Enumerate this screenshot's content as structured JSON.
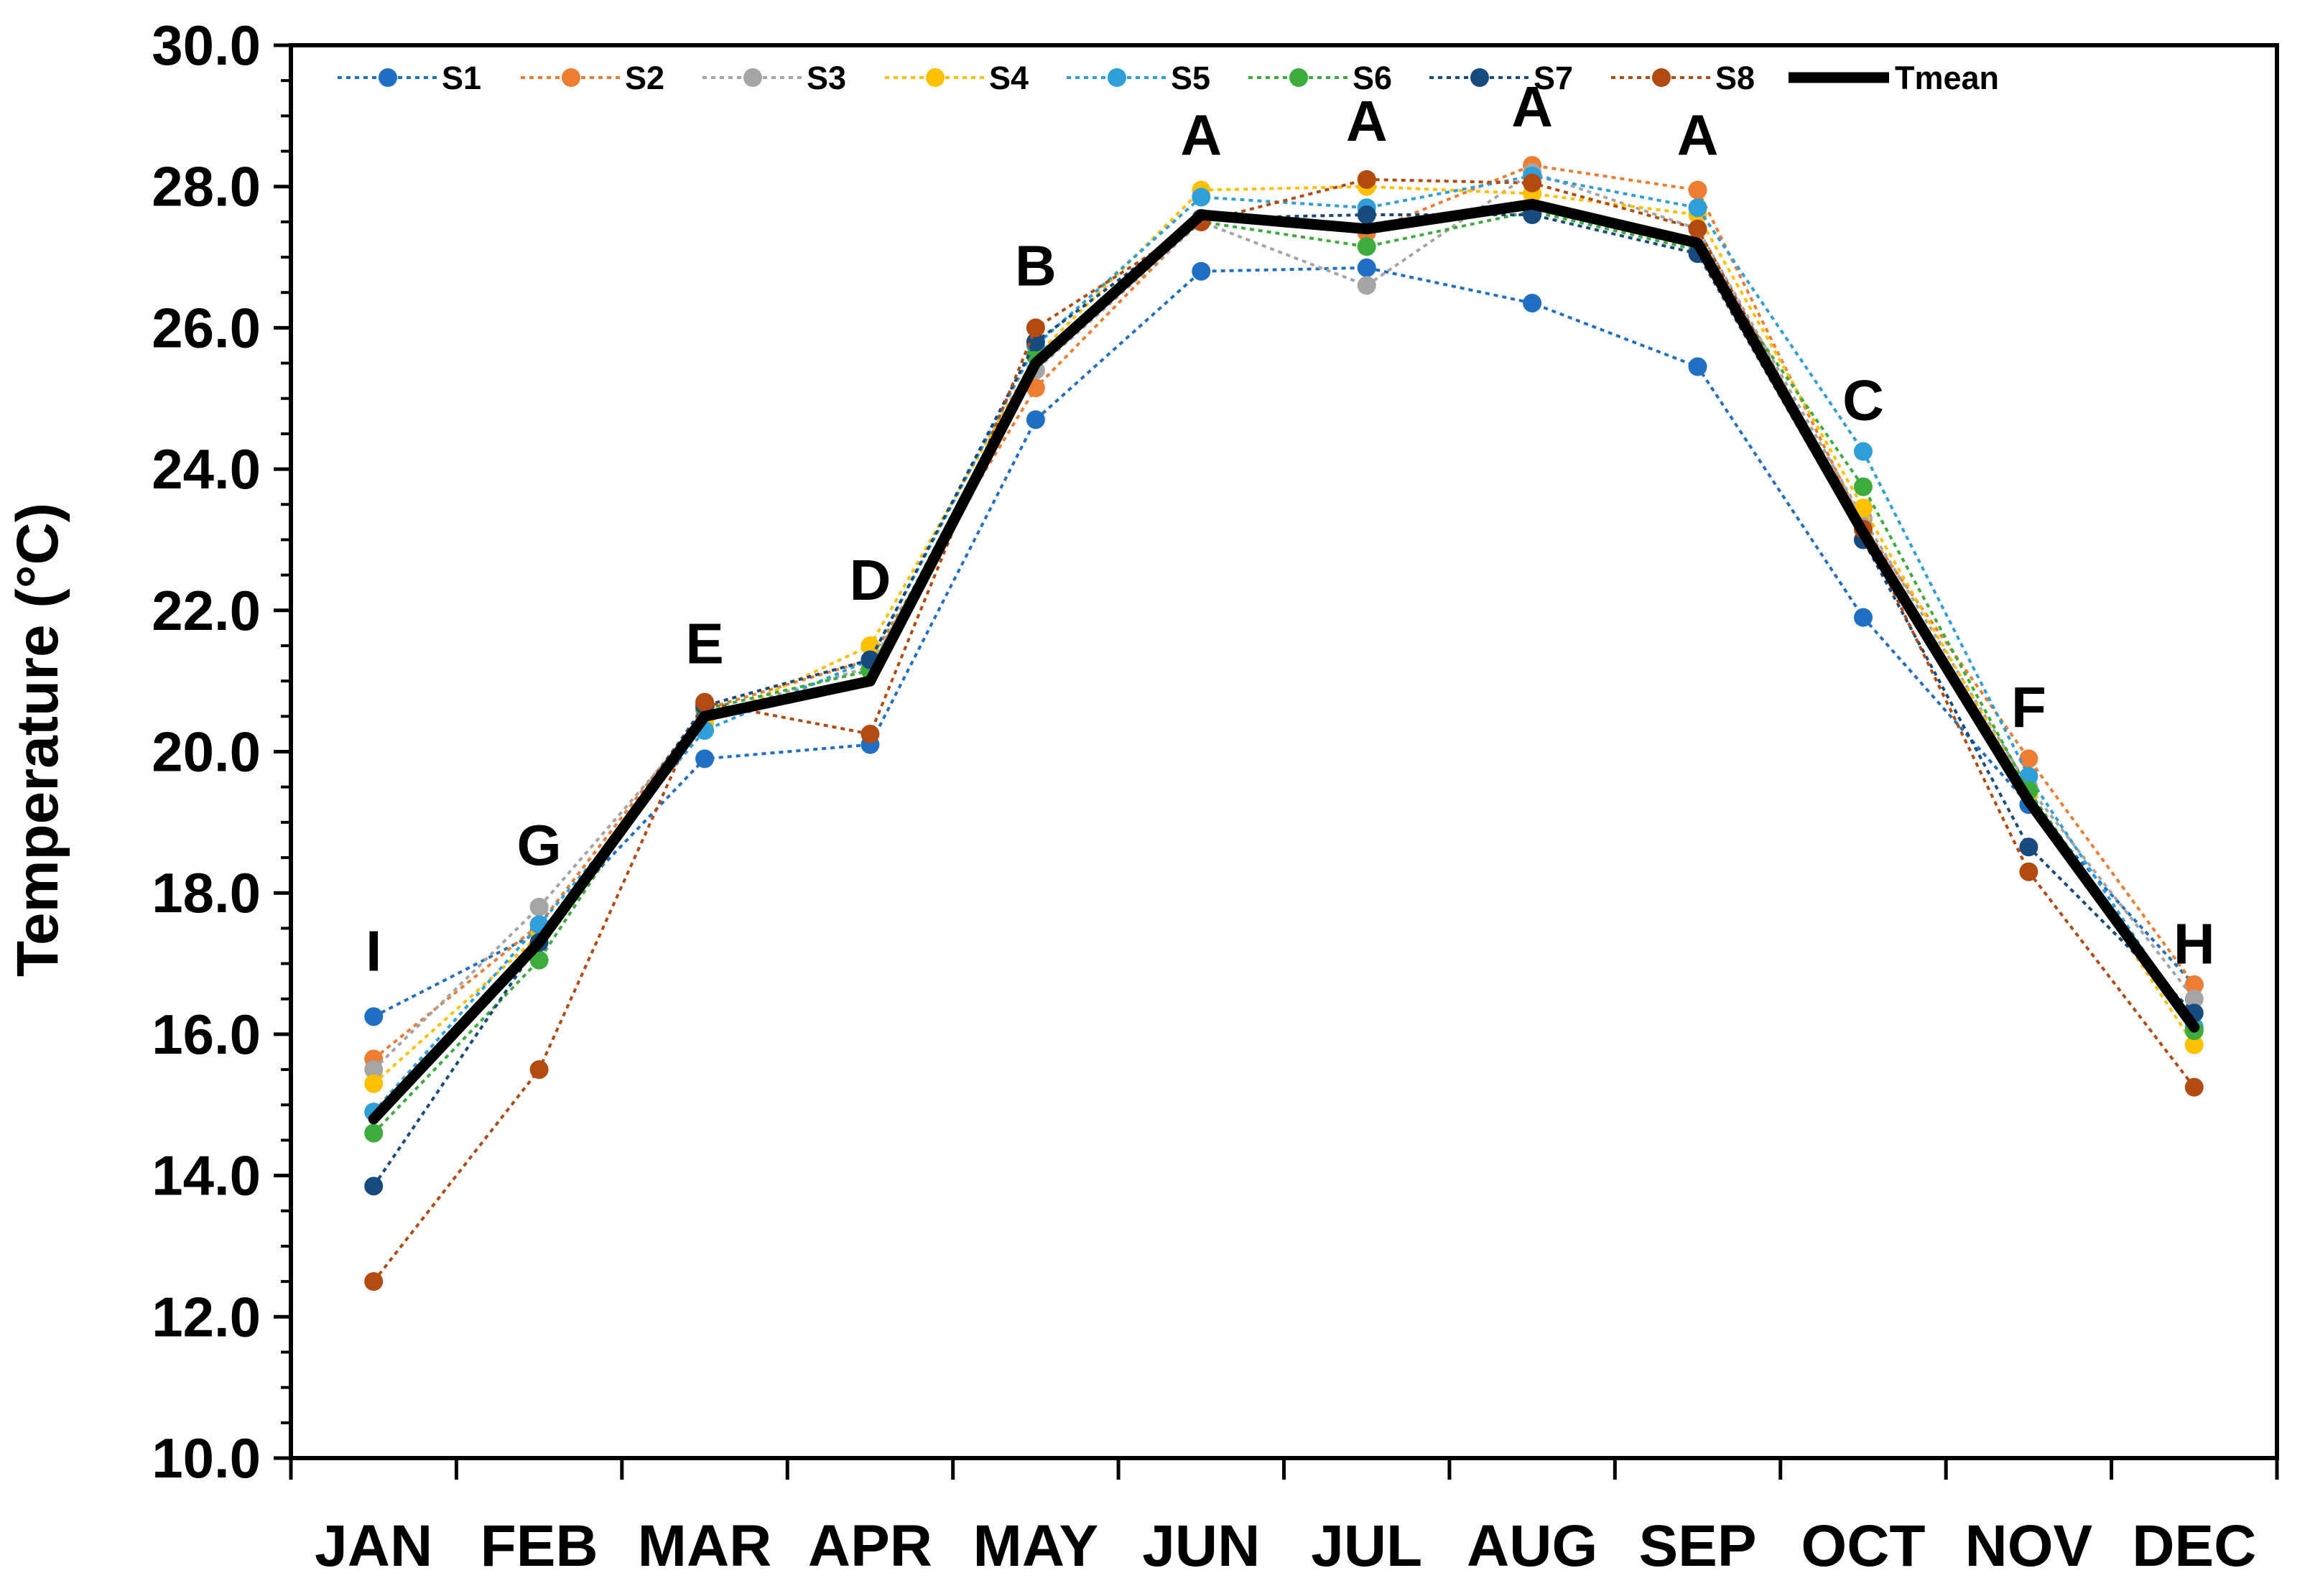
{
  "chart_data": {
    "type": "line",
    "title": "",
    "xlabel": "",
    "ylabel": "Temperature  (°C)",
    "ylim": [
      10.0,
      30.0
    ],
    "yticks": [
      "10.0",
      "12.0",
      "14.0",
      "16.0",
      "18.0",
      "20.0",
      "22.0",
      "24.0",
      "26.0",
      "28.0",
      "30.0"
    ],
    "categories": [
      "JAN",
      "FEB",
      "MAR",
      "APR",
      "MAY",
      "JUN",
      "JUL",
      "AUG",
      "SEP",
      "OCT",
      "NOV",
      "DEC"
    ],
    "grid": false,
    "legend_position": "top",
    "series": [
      {
        "name": "S1",
        "color": "#1f6fc4",
        "style": "dotted",
        "values": [
          16.25,
          17.45,
          19.9,
          20.1,
          24.7,
          26.8,
          26.85,
          26.35,
          25.45,
          21.9,
          19.25,
          16.7
        ]
      },
      {
        "name": "S2",
        "color": "#ed7d31",
        "style": "dotted",
        "values": [
          15.65,
          17.55,
          20.6,
          21.3,
          25.15,
          27.55,
          27.35,
          28.3,
          27.95,
          23.2,
          19.9,
          16.7
        ]
      },
      {
        "name": "S3",
        "color": "#a5a5a5",
        "style": "dotted",
        "values": [
          15.5,
          17.8,
          20.5,
          21.2,
          25.4,
          27.5,
          26.6,
          28.2,
          27.4,
          23.3,
          19.5,
          16.5
        ]
      },
      {
        "name": "S4",
        "color": "#ffc000",
        "style": "dotted",
        "values": [
          15.3,
          17.4,
          20.4,
          21.5,
          25.6,
          27.95,
          28.0,
          27.9,
          27.6,
          23.45,
          19.4,
          15.85
        ]
      },
      {
        "name": "S5",
        "color": "#2e9fd9",
        "style": "dotted",
        "values": [
          14.9,
          17.55,
          20.3,
          21.3,
          25.75,
          27.85,
          27.7,
          28.15,
          27.7,
          24.25,
          19.65,
          16.1
        ]
      },
      {
        "name": "S6",
        "color": "#3cad3c",
        "style": "dotted",
        "values": [
          14.6,
          17.05,
          20.6,
          21.15,
          25.6,
          27.5,
          27.15,
          27.65,
          27.1,
          23.75,
          19.45,
          16.05
        ]
      },
      {
        "name": "S7",
        "color": "#174a7e",
        "style": "dotted",
        "values": [
          13.85,
          17.3,
          20.65,
          21.3,
          25.8,
          27.55,
          27.6,
          27.6,
          27.05,
          23.0,
          18.65,
          16.3
        ]
      },
      {
        "name": "S8",
        "color": "#b34a0f",
        "style": "dotted",
        "values": [
          12.5,
          15.5,
          20.7,
          20.25,
          26.0,
          27.5,
          28.1,
          28.05,
          27.4,
          23.15,
          18.3,
          15.25
        ]
      },
      {
        "name": "Tmean",
        "color": "#000000",
        "style": "solid",
        "values": [
          14.8,
          17.3,
          20.5,
          21.0,
          25.5,
          27.6,
          27.4,
          27.75,
          27.2,
          23.1,
          19.3,
          16.1
        ]
      }
    ],
    "annotations": [
      {
        "category": "JAN",
        "text": "I",
        "y": 16.9
      },
      {
        "category": "FEB",
        "text": "G",
        "y": 18.4
      },
      {
        "category": "MAR",
        "text": "E",
        "y": 21.25
      },
      {
        "category": "APR",
        "text": "D",
        "y": 22.15
      },
      {
        "category": "MAY",
        "text": "B",
        "y": 26.6
      },
      {
        "category": "JUN",
        "text": "A",
        "y": 28.45
      },
      {
        "category": "JUL",
        "text": "A",
        "y": 28.65
      },
      {
        "category": "AUG",
        "text": "A",
        "y": 28.85
      },
      {
        "category": "SEP",
        "text": "A",
        "y": 28.45
      },
      {
        "category": "OCT",
        "text": "C",
        "y": 24.7
      },
      {
        "category": "NOV",
        "text": "F",
        "y": 20.35
      },
      {
        "category": "DEC",
        "text": "H",
        "y": 17.0
      }
    ]
  }
}
